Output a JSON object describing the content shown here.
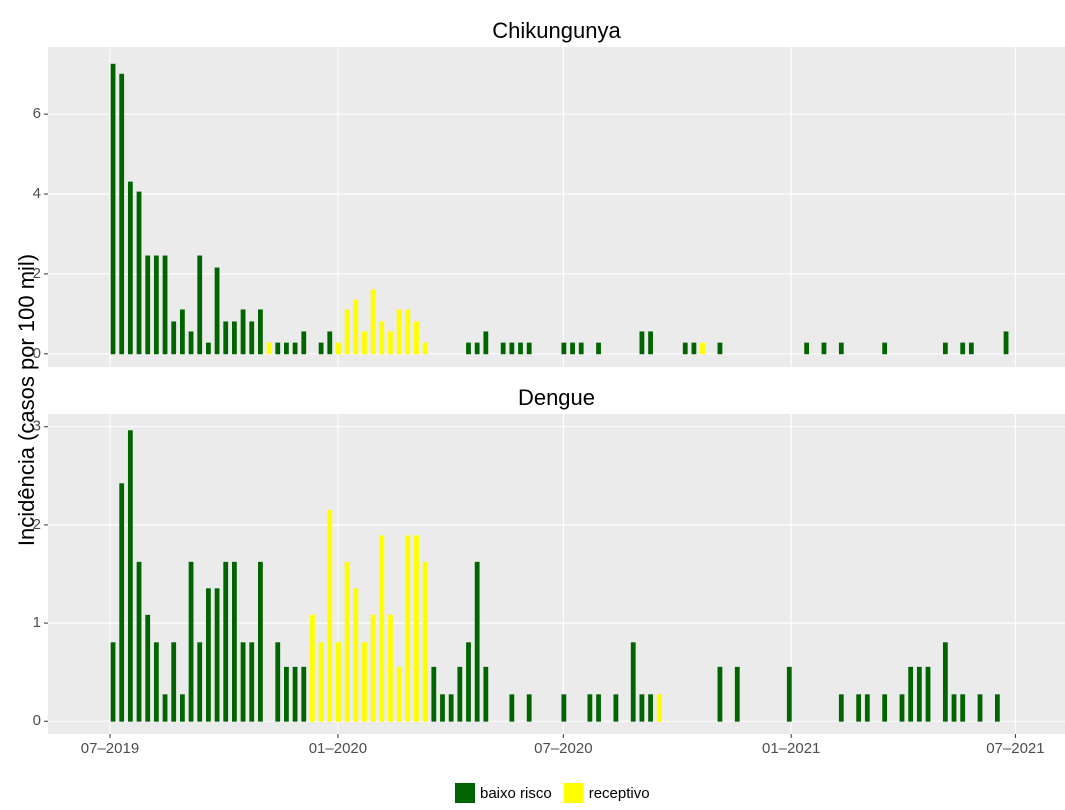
{
  "y_label": "Incidência (casos por 100 mil)",
  "chart_data": [
    {
      "type": "bar",
      "title": "Chikungunya",
      "x": [
        0.35,
        1.35,
        2.35,
        3.35,
        4.35,
        5.35,
        6.35,
        7.35,
        8.35,
        9.35,
        10.35,
        11.35,
        12.35,
        13.35,
        14.35,
        15.35,
        16.35,
        17.35,
        18.35,
        19.35,
        20.35,
        21.35,
        22.35,
        23.35,
        24.35,
        25.35,
        26.35,
        27.35,
        28.35,
        29.35,
        30.35,
        31.35,
        32.35,
        33.35,
        34.35,
        35.35,
        36.35,
        37.35,
        38.35,
        39.35,
        40.35,
        41.35,
        42.35,
        43.35,
        44.35,
        45.35,
        46.35,
        47.35,
        48.35,
        49.35,
        50.35,
        51.35,
        52.35,
        53.35,
        54.35,
        55.35,
        56.35,
        57.35,
        58.35,
        59.35,
        60.35,
        61.35,
        62.35,
        63.35,
        64.35,
        65.35,
        66.35,
        67.35,
        68.35,
        69.35,
        70.35,
        71.35,
        72.35,
        73.35,
        74.35,
        75.35,
        76.35,
        77.35,
        78.35,
        79.35,
        80.35,
        81.35,
        82.35,
        83.35,
        84.35,
        85.35,
        86.35,
        87.35,
        88.35,
        89.35,
        90.35,
        91.35,
        92.35,
        93.35,
        94.35,
        95.35,
        96.35,
        97.35,
        98.35,
        99.35,
        100.35,
        101.35,
        102.35,
        103.35,
        104.35,
        105.35
      ],
      "series": [
        {
          "name": "baixo risco",
          "color": "#006400",
          "values": [
            7.25,
            7,
            4.3,
            4.05,
            2.45,
            2.45,
            2.45,
            0.8,
            1.1,
            0.55,
            2.45,
            0.27,
            2.15,
            0.8,
            0.8,
            1.1,
            0.8,
            1.1,
            null,
            0.27,
            0.27,
            0.27,
            0.55,
            0,
            0.27,
            0.55,
            null,
            null,
            null,
            null,
            null,
            null,
            null,
            null,
            null,
            null,
            null,
            0,
            0,
            0,
            0,
            0.27,
            0.27,
            0.55,
            0,
            0.27,
            0.27,
            0.27,
            0.27,
            0,
            0,
            0,
            0.27,
            0.27,
            0.27,
            0,
            0.27,
            0,
            0,
            0,
            0,
            0.55,
            0.55,
            0,
            0,
            0,
            0.27,
            0.27,
            null,
            0,
            0.27,
            0,
            0,
            0,
            0,
            0,
            0,
            0,
            0,
            0,
            0.27,
            0,
            0.27,
            0,
            0.27,
            0,
            0,
            0,
            0,
            0.27,
            0,
            0,
            0,
            0,
            0,
            0,
            0.27,
            0,
            0.27,
            0.27,
            0,
            0,
            0,
            0.55,
            0,
            0
          ]
        },
        {
          "name": "receptivo",
          "color": "#ffff00",
          "values": [
            null,
            null,
            null,
            null,
            null,
            null,
            null,
            null,
            null,
            null,
            null,
            null,
            null,
            null,
            null,
            null,
            null,
            null,
            0.27,
            null,
            null,
            null,
            null,
            null,
            null,
            null,
            0.27,
            1.1,
            1.35,
            0.55,
            1.6,
            0.8,
            0.55,
            1.1,
            1.1,
            0.8,
            0.27,
            null,
            null,
            null,
            null,
            null,
            null,
            null,
            null,
            null,
            null,
            null,
            null,
            null,
            null,
            null,
            null,
            null,
            null,
            null,
            null,
            null,
            null,
            null,
            null,
            null,
            null,
            null,
            null,
            null,
            null,
            null,
            0.27,
            null,
            null,
            null,
            null,
            null,
            null,
            null,
            null,
            null,
            null,
            null,
            null,
            null,
            null,
            null,
            null,
            null,
            null,
            null,
            null,
            null,
            null,
            null,
            null,
            null,
            null,
            null,
            null,
            null,
            null,
            null,
            null,
            null,
            null,
            null,
            null,
            null
          ]
        }
      ],
      "xlim": [
        -7.15,
        110.15
      ],
      "ylim": [
        -0.33,
        7.68
      ],
      "yticks": [
        0,
        2,
        4,
        6
      ]
    },
    {
      "type": "bar",
      "title": "Dengue",
      "x": [
        0.35,
        1.35,
        2.35,
        3.35,
        4.35,
        5.35,
        6.35,
        7.35,
        8.35,
        9.35,
        10.35,
        11.35,
        12.35,
        13.35,
        14.35,
        15.35,
        16.35,
        17.35,
        18.35,
        19.35,
        20.35,
        21.35,
        22.35,
        23.35,
        24.35,
        25.35,
        26.35,
        27.35,
        28.35,
        29.35,
        30.35,
        31.35,
        32.35,
        33.35,
        34.35,
        35.35,
        36.35,
        37.35,
        38.35,
        39.35,
        40.35,
        41.35,
        42.35,
        43.35,
        44.35,
        45.35,
        46.35,
        47.35,
        48.35,
        49.35,
        50.35,
        51.35,
        52.35,
        53.35,
        54.35,
        55.35,
        56.35,
        57.35,
        58.35,
        59.35,
        60.35,
        61.35,
        62.35,
        63.35,
        64.35,
        65.35,
        66.35,
        67.35,
        68.35,
        69.35,
        70.35,
        71.35,
        72.35,
        73.35,
        74.35,
        75.35,
        76.35,
        77.35,
        78.35,
        79.35,
        80.35,
        81.35,
        82.35,
        83.35,
        84.35,
        85.35,
        86.35,
        87.35,
        88.35,
        89.35,
        90.35,
        91.35,
        92.35,
        93.35,
        94.35,
        95.35,
        96.35,
        97.35,
        98.35,
        99.35,
        100.35,
        101.35,
        102.35,
        103.35,
        104.35,
        105.35
      ],
      "series": [
        {
          "name": "baixo risco",
          "color": "#006400",
          "values": [
            0.8,
            2.42,
            2.96,
            1.62,
            1.08,
            0.8,
            0.27,
            0.8,
            0.27,
            1.62,
            0.8,
            1.35,
            1.35,
            1.62,
            1.62,
            0.8,
            0.8,
            1.62,
            0,
            0.8,
            0.55,
            0.55,
            0.55,
            null,
            null,
            null,
            null,
            null,
            null,
            null,
            null,
            null,
            null,
            null,
            null,
            null,
            null,
            0.55,
            0.27,
            0.27,
            0.55,
            0.8,
            1.62,
            0.55,
            0,
            0,
            0.27,
            0,
            0.27,
            0,
            0,
            0,
            0.27,
            0,
            0,
            0.27,
            0.27,
            0,
            0.27,
            0,
            0.8,
            0.27,
            0.27,
            null,
            0,
            0,
            0,
            0,
            0,
            0,
            0.55,
            0,
            0.55,
            0,
            0,
            0,
            0,
            0,
            0.55,
            0,
            0,
            0,
            0,
            0,
            0.27,
            0,
            0.27,
            0.27,
            0,
            0.27,
            0,
            0.27,
            0.55,
            0.55,
            0.55,
            0,
            0.8,
            0.27,
            0.27,
            0,
            0.27,
            0,
            0.27,
            0,
            0,
            0
          ]
        },
        {
          "name": "receptivo",
          "color": "#ffff00",
          "values": [
            null,
            null,
            null,
            null,
            null,
            null,
            null,
            null,
            null,
            null,
            null,
            null,
            null,
            null,
            null,
            null,
            null,
            null,
            null,
            null,
            null,
            null,
            null,
            1.08,
            0.8,
            2.15,
            0.8,
            1.62,
            1.35,
            0.8,
            1.08,
            1.89,
            1.08,
            0.55,
            1.89,
            1.89,
            1.62,
            null,
            null,
            null,
            null,
            null,
            null,
            null,
            null,
            null,
            null,
            null,
            null,
            null,
            null,
            null,
            null,
            null,
            null,
            null,
            null,
            null,
            null,
            null,
            null,
            null,
            null,
            0.27,
            null,
            null,
            null,
            null,
            null,
            null,
            null,
            null,
            null,
            null,
            null,
            null,
            null,
            null,
            null,
            null,
            null,
            null,
            null,
            null,
            null,
            null,
            null,
            null,
            null,
            null,
            null,
            null,
            null,
            null,
            null,
            null,
            null,
            null,
            null,
            null,
            null,
            null,
            null,
            null,
            null,
            null
          ]
        }
      ],
      "xlim": [
        -7.15,
        110.15
      ],
      "ylim": [
        -0.13,
        3.13
      ],
      "yticks": [
        0,
        1,
        2,
        3
      ],
      "xticks": [
        {
          "value": 0,
          "label": "07–2019"
        },
        {
          "value": 26.29,
          "label": "01–2020"
        },
        {
          "value": 52.29,
          "label": "07–2020"
        },
        {
          "value": 78.57,
          "label": "01–2021"
        },
        {
          "value": 104.43,
          "label": "07–2021"
        }
      ]
    }
  ]
}
